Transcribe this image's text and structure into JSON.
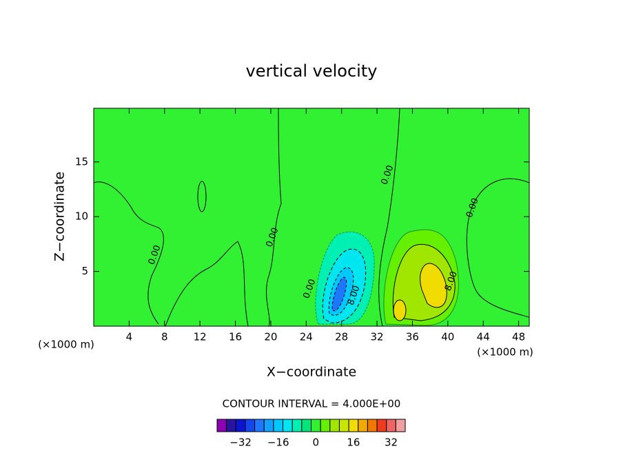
{
  "chart_data": {
    "type": "contour",
    "title": "vertical velocity",
    "x_label": "X−coordinate",
    "y_label": "Z−coordinate",
    "x_unit_left": "(×1000 m)",
    "x_unit_right": "(×1000 m)",
    "xlim": [
      0,
      49.2
    ],
    "ylim": [
      0,
      19.9
    ],
    "xticks": [
      4,
      8,
      12,
      16,
      20,
      24,
      28,
      32,
      36,
      40,
      44,
      48
    ],
    "yticks": [
      5,
      10,
      15
    ],
    "background_color": "#32f032",
    "annotations": [
      {
        "text": "0.00",
        "x": 6.9,
        "y": 6.5
      },
      {
        "text": "0.00",
        "x": 20.2,
        "y": 8.1
      },
      {
        "text": "0.00",
        "x": 24.4,
        "y": 3.4
      },
      {
        "text": "0.00",
        "x": 33.2,
        "y": 13.8
      },
      {
        "text": "0.00",
        "x": 42.8,
        "y": 10.8
      },
      {
        "text": "8.00",
        "x": 29.4,
        "y": 2.8
      },
      {
        "text": "8.00",
        "x": 40.4,
        "y": 4.1
      }
    ],
    "contour_interval_text": "CONTOUR INTERVAL = 4.000E+00",
    "colorbar": {
      "colors": [
        "#8c00b4",
        "#2814a0",
        "#0a14d2",
        "#1446f0",
        "#1e78ff",
        "#14a0ff",
        "#00c8ff",
        "#00e6f0",
        "#00f0b4",
        "#00e678",
        "#32f032",
        "#64f000",
        "#a0e600",
        "#c8e600",
        "#f0dc00",
        "#f0aa00",
        "#f07800",
        "#f03c1e",
        "#f06464",
        "#f0a0a0"
      ],
      "vlim": [
        -42,
        38
      ],
      "ticks": [
        {
          "value": -32,
          "label": "−32"
        },
        {
          "value": -16,
          "label": "−16"
        },
        0,
        16,
        32
      ]
    }
  }
}
